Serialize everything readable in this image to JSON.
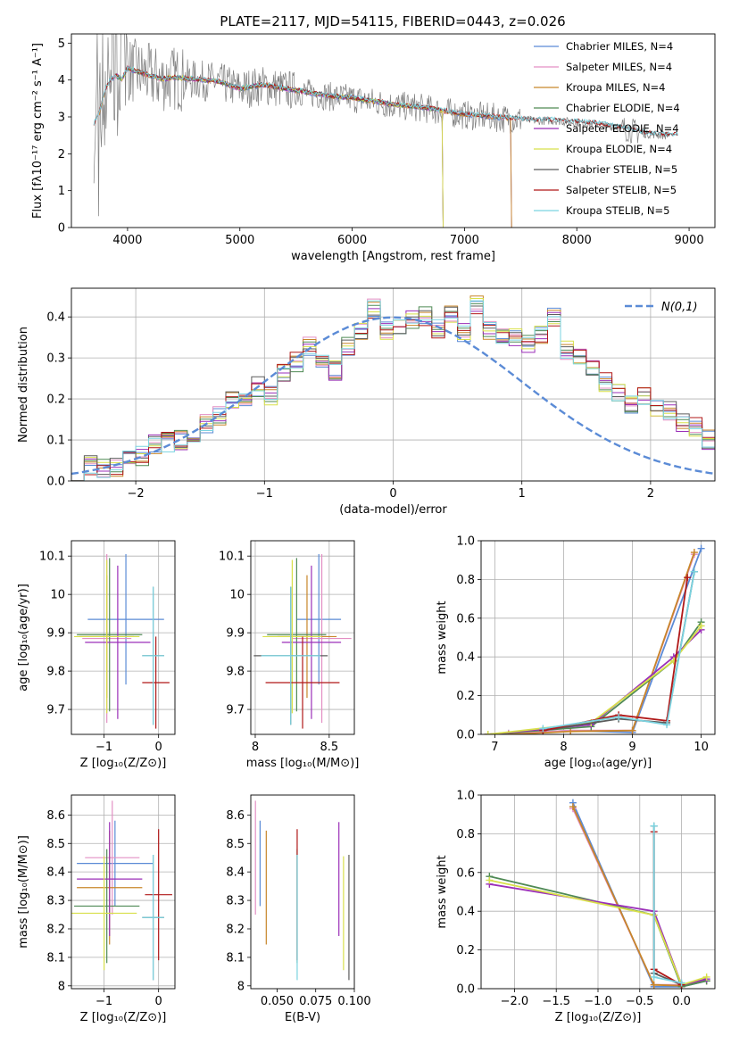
{
  "figure": {
    "title": "PLATE=2117, MJD=54115, FIBERID=0443, z=0.026"
  },
  "colors": {
    "chabrier_miles": "#5b8bd6",
    "salpeter_miles": "#e38fc4",
    "kroupa_miles": "#c8862a",
    "chabrier_elodie": "#4f8a55",
    "salpeter_elodie": "#9b2fb8",
    "kroupa_elodie": "#d8e04a",
    "chabrier_stelib": "#5c5c5c",
    "salpeter_stelib": "#b01818",
    "kroupa_stelib": "#7ad3e0",
    "data": "#808080",
    "gaussian": "#5b8bd6",
    "grid": "#b0b0b0"
  },
  "chart_data": [
    {
      "id": "spectrum",
      "type": "line",
      "title": "PLATE=2117, MJD=54115, FIBERID=0443, z=0.026",
      "xlabel": "wavelength [Angstrom, rest frame]",
      "ylabel": "Flux [fλ10⁻¹⁷ erg cm⁻² s⁻¹ A⁻¹]",
      "xlim": [
        3500,
        9230
      ],
      "ylim": [
        0,
        5.25
      ],
      "xticks": [
        4000,
        5000,
        6000,
        7000,
        8000,
        9000
      ],
      "yticks": [
        0,
        1,
        2,
        3,
        4,
        5
      ],
      "grid": false,
      "legend_position": "top-right",
      "legend": [
        "Chabrier MILES, N_SSP=4",
        "Salpeter MILES, N_SSP=4",
        "Kroupa MILES, N_SSP=4",
        "Chabrier ELODIE, N_SSP=4",
        "Salpeter ELODIE, N_SSP=4",
        "Kroupa ELODIE, N_SSP=4",
        "Chabrier STELIB, N_SSP=5",
        "Salpeter STELIB, N_SSP=5",
        "Kroupa STELIB, N_SSP=5"
      ],
      "continuum": {
        "x": [
          3700,
          3750,
          3800,
          3850,
          3900,
          3950,
          4000,
          4100,
          4200,
          4300,
          4400,
          4600,
          4800,
          5000,
          5200,
          5400,
          5600,
          5800,
          6000,
          6200,
          6400,
          6600,
          6800,
          7000,
          7200,
          7400,
          7600,
          7800,
          8000,
          8200,
          8400,
          8600,
          8800,
          9000
        ],
        "y": [
          2.8,
          3.1,
          3.7,
          4.0,
          4.1,
          4.0,
          4.3,
          4.2,
          4.1,
          4.0,
          4.05,
          4.0,
          3.95,
          3.75,
          3.85,
          3.75,
          3.65,
          3.55,
          3.5,
          3.4,
          3.3,
          3.25,
          3.15,
          3.05,
          3.0,
          2.95,
          2.9,
          2.9,
          2.85,
          2.8,
          2.7,
          2.55,
          2.5,
          2.5
        ]
      }
    },
    {
      "id": "residuals",
      "type": "bar",
      "xlabel": "(data-model)/error",
      "ylabel": "Normed distribution",
      "xlim": [
        -2.5,
        2.5
      ],
      "ylim": [
        0,
        0.47
      ],
      "xticks": [
        -2,
        -1,
        0,
        1,
        2
      ],
      "xtick_labels": [
        "−2",
        "−1",
        "0",
        "1",
        "2"
      ],
      "yticks": [
        0.0,
        0.1,
        0.2,
        0.3,
        0.4
      ],
      "grid": true,
      "legend_position": "top-right",
      "legend": [
        "N(0,1)"
      ],
      "bin_width": 0.1,
      "values": [
        0.025,
        0.04,
        0.03,
        0.035,
        0.05,
        0.06,
        0.09,
        0.095,
        0.1,
        0.11,
        0.14,
        0.16,
        0.2,
        0.19,
        0.23,
        0.21,
        0.26,
        0.29,
        0.33,
        0.3,
        0.27,
        0.33,
        0.36,
        0.42,
        0.37,
        0.38,
        0.39,
        0.4,
        0.37,
        0.41,
        0.36,
        0.43,
        0.37,
        0.36,
        0.35,
        0.33,
        0.36,
        0.4,
        0.32,
        0.3,
        0.28,
        0.24,
        0.22,
        0.19,
        0.21,
        0.18,
        0.17,
        0.14,
        0.13,
        0.1,
        0.1,
        0.08,
        0.07,
        0.07,
        0.05,
        0.05,
        0.04,
        0.03,
        0.025,
        0.02
      ]
    },
    {
      "id": "age_vs_z",
      "type": "scatter",
      "xlabel": "Z [log₁₀(Z/Z⊙)]",
      "ylabel": "age  [log₁₀(age/yr)]",
      "xlim": [
        -1.6,
        0.3
      ],
      "ylim": [
        9.635,
        10.14
      ],
      "xticks": [
        -1,
        0
      ],
      "xtick_labels": [
        "−1",
        "0"
      ],
      "yticks": [
        9.7,
        9.8,
        9.9,
        10.0,
        10.1
      ],
      "grid": true,
      "points": [
        {
          "model": "chabrier_miles",
          "x": -0.6,
          "xerr": 0.7,
          "y": 9.935,
          "yerr": 0.17
        },
        {
          "model": "salpeter_miles",
          "x": -0.95,
          "xerr": 0.45,
          "y": 9.885,
          "yerr": 0.22
        },
        {
          "model": "kroupa_miles",
          "x": -0.95,
          "xerr": 0.5,
          "y": 9.89,
          "yerr": 0.16
        },
        {
          "model": "chabrier_elodie",
          "x": -0.9,
          "xerr": 0.6,
          "y": 9.895,
          "yerr": 0.2
        },
        {
          "model": "salpeter_elodie",
          "x": -0.75,
          "xerr": 0.6,
          "y": 9.875,
          "yerr": 0.2
        },
        {
          "model": "kroupa_elodie",
          "x": -0.95,
          "xerr": 0.6,
          "y": 9.89,
          "yerr": 0.2
        },
        {
          "model": "chabrier_stelib",
          "x": -0.1,
          "xerr": 0.2,
          "y": 9.84,
          "yerr": 0.18
        },
        {
          "model": "salpeter_stelib",
          "x": -0.05,
          "xerr": 0.25,
          "y": 9.77,
          "yerr": 0.12
        },
        {
          "model": "kroupa_stelib",
          "x": -0.1,
          "xerr": 0.2,
          "y": 9.84,
          "yerr": 0.18
        }
      ]
    },
    {
      "id": "age_vs_mass",
      "type": "scatter",
      "xlabel": "mass [log₁₀(M/M⊙)]",
      "ylabel": "",
      "xlim": [
        7.97,
        8.67
      ],
      "ylim": [
        9.635,
        10.14
      ],
      "xticks": [
        8.0,
        8.5
      ],
      "yticks": [
        9.7,
        9.8,
        9.9,
        10.0,
        10.1
      ],
      "grid": true,
      "points": [
        {
          "model": "chabrier_miles",
          "x": 8.43,
          "xerr": 0.15,
          "y": 9.935,
          "yerr": 0.17
        },
        {
          "model": "salpeter_miles",
          "x": 8.45,
          "xerr": 0.2,
          "y": 9.885,
          "yerr": 0.22
        },
        {
          "model": "kroupa_miles",
          "x": 8.35,
          "xerr": 0.2,
          "y": 9.89,
          "yerr": 0.16
        },
        {
          "model": "chabrier_elodie",
          "x": 8.28,
          "xerr": 0.2,
          "y": 9.895,
          "yerr": 0.2
        },
        {
          "model": "salpeter_elodie",
          "x": 8.38,
          "xerr": 0.2,
          "y": 9.875,
          "yerr": 0.2
        },
        {
          "model": "kroupa_elodie",
          "x": 8.25,
          "xerr": 0.2,
          "y": 9.89,
          "yerr": 0.2
        },
        {
          "model": "chabrier_stelib",
          "x": 8.24,
          "xerr": 0.25,
          "y": 9.84,
          "yerr": 0.18
        },
        {
          "model": "salpeter_stelib",
          "x": 8.32,
          "xerr": 0.25,
          "y": 9.77,
          "yerr": 0.12
        },
        {
          "model": "kroupa_stelib",
          "x": 8.24,
          "xerr": 0.2,
          "y": 9.84,
          "yerr": 0.18
        }
      ]
    },
    {
      "id": "weight_vs_age",
      "type": "line",
      "xlabel": "age  [log₁₀(age/yr)]",
      "ylabel": "mass weight",
      "xlim": [
        6.8,
        10.2
      ],
      "ylim": [
        0,
        1.0
      ],
      "xticks": [
        7,
        8,
        9,
        10
      ],
      "yticks": [
        0.0,
        0.2,
        0.4,
        0.6,
        0.8,
        1.0
      ],
      "grid": true,
      "series": [
        {
          "model": "chabrier_miles",
          "x": [
            7.2,
            8.1,
            9.0,
            10.0
          ],
          "y": [
            0.005,
            0.02,
            0.01,
            0.96
          ]
        },
        {
          "model": "salpeter_miles",
          "x": [
            7.2,
            8.1,
            9.0,
            9.9
          ],
          "y": [
            0.005,
            0.02,
            0.02,
            0.93
          ]
        },
        {
          "model": "kroupa_miles",
          "x": [
            7.2,
            8.1,
            9.0,
            9.9
          ],
          "y": [
            0.0,
            0.015,
            0.02,
            0.94
          ]
        },
        {
          "model": "chabrier_elodie",
          "x": [
            6.9,
            8.4,
            9.6,
            10.0
          ],
          "y": [
            0.0,
            0.04,
            0.38,
            0.58
          ]
        },
        {
          "model": "salpeter_elodie",
          "x": [
            6.9,
            8.4,
            9.6,
            10.0
          ],
          "y": [
            0.0,
            0.05,
            0.4,
            0.54
          ]
        },
        {
          "model": "kroupa_elodie",
          "x": [
            6.9,
            8.4,
            9.6,
            10.0
          ],
          "y": [
            0.0,
            0.06,
            0.38,
            0.56
          ]
        },
        {
          "model": "chabrier_stelib",
          "x": [
            7.7,
            8.8,
            9.5,
            9.9
          ],
          "y": [
            0.02,
            0.08,
            0.06,
            0.84
          ]
        },
        {
          "model": "salpeter_stelib",
          "x": [
            7.7,
            8.8,
            9.5,
            9.8
          ],
          "y": [
            0.02,
            0.1,
            0.07,
            0.81
          ]
        },
        {
          "model": "kroupa_stelib",
          "x": [
            7.7,
            8.8,
            9.5,
            9.9
          ],
          "y": [
            0.03,
            0.09,
            0.05,
            0.84
          ]
        }
      ]
    },
    {
      "id": "mass_vs_z",
      "type": "scatter",
      "xlabel": "Z [log₁₀(Z/Z⊙)]",
      "ylabel": "mass [log₁₀(M/M⊙)]",
      "xlim": [
        -1.6,
        0.3
      ],
      "ylim": [
        7.99,
        8.67
      ],
      "xticks": [
        -1,
        0
      ],
      "xtick_labels": [
        "−1",
        "0"
      ],
      "yticks": [
        8.0,
        8.1,
        8.2,
        8.3,
        8.4,
        8.5,
        8.6
      ],
      "grid": true,
      "points": [
        {
          "model": "chabrier_miles",
          "x": -0.8,
          "xerr": 0.7,
          "y": 8.43,
          "yerr": 0.15
        },
        {
          "model": "salpeter_miles",
          "x": -0.85,
          "xerr": 0.5,
          "y": 8.45,
          "yerr": 0.2
        },
        {
          "model": "kroupa_miles",
          "x": -0.9,
          "xerr": 0.6,
          "y": 8.345,
          "yerr": 0.2
        },
        {
          "model": "chabrier_elodie",
          "x": -0.95,
          "xerr": 0.6,
          "y": 8.28,
          "yerr": 0.2
        },
        {
          "model": "salpeter_elodie",
          "x": -0.9,
          "xerr": 0.6,
          "y": 8.375,
          "yerr": 0.2
        },
        {
          "model": "kroupa_elodie",
          "x": -1.0,
          "xerr": 0.6,
          "y": 8.255,
          "yerr": 0.2
        },
        {
          "model": "chabrier_stelib",
          "x": -0.1,
          "xerr": 0.2,
          "y": 8.24,
          "yerr": 0.22
        },
        {
          "model": "salpeter_stelib",
          "x": 0.0,
          "xerr": 0.25,
          "y": 8.32,
          "yerr": 0.23
        },
        {
          "model": "kroupa_stelib",
          "x": -0.1,
          "xerr": 0.2,
          "y": 8.24,
          "yerr": 0.22
        }
      ]
    },
    {
      "id": "mass_vs_ebv",
      "type": "scatter",
      "xlabel": "E(B-V)",
      "ylabel": "",
      "xlim": [
        0.033,
        0.1
      ],
      "ylim": [
        7.99,
        8.67
      ],
      "xticks": [
        0.05,
        0.075,
        0.1
      ],
      "xtick_labels": [
        "0.050",
        "0.075",
        "0.100"
      ],
      "yticks": [
        8.0,
        8.1,
        8.2,
        8.3,
        8.4,
        8.5,
        8.6
      ],
      "grid": false,
      "points": [
        {
          "model": "chabrier_miles",
          "x": 0.039,
          "y": 8.43,
          "yerr": 0.15
        },
        {
          "model": "salpeter_miles",
          "x": 0.036,
          "y": 8.45,
          "yerr": 0.2
        },
        {
          "model": "kroupa_miles",
          "x": 0.043,
          "y": 8.345,
          "yerr": 0.2
        },
        {
          "model": "chabrier_elodie",
          "x": 0.063,
          "y": 8.28,
          "yerr": 0.2
        },
        {
          "model": "salpeter_elodie",
          "x": 0.09,
          "y": 8.375,
          "yerr": 0.2
        },
        {
          "model": "kroupa_elodie",
          "x": 0.093,
          "y": 8.255,
          "yerr": 0.2
        },
        {
          "model": "chabrier_stelib",
          "x": 0.0965,
          "y": 8.24,
          "yerr": 0.22
        },
        {
          "model": "salpeter_stelib",
          "x": 0.063,
          "y": 8.32,
          "yerr": 0.23
        },
        {
          "model": "kroupa_stelib",
          "x": 0.063,
          "y": 8.24,
          "yerr": 0.22
        }
      ]
    },
    {
      "id": "weight_vs_z",
      "type": "line",
      "xlabel": "Z [log₁₀(Z/Z⊙)]",
      "ylabel": "mass weight",
      "xlim": [
        -2.4,
        0.4
      ],
      "ylim": [
        0,
        1.0
      ],
      "xticks": [
        -2.0,
        -1.5,
        -1.0,
        -0.5,
        0.0
      ],
      "xtick_labels": [
        "−2.0",
        "−1.5",
        "−1.0",
        "−0.5",
        "0.0"
      ],
      "yticks": [
        0.0,
        0.2,
        0.4,
        0.6,
        0.8,
        1.0
      ],
      "grid": true,
      "series": [
        {
          "model": "chabrier_miles",
          "x": [
            -1.3,
            -0.33,
            0.0,
            0.3
          ],
          "y": [
            0.96,
            0.01,
            0.01,
            0.04
          ]
        },
        {
          "model": "salpeter_miles",
          "x": [
            -1.3,
            -0.33,
            0.0,
            0.3
          ],
          "y": [
            0.93,
            0.02,
            0.02,
            0.04
          ]
        },
        {
          "model": "kroupa_miles",
          "x": [
            -1.3,
            -0.33,
            0.0,
            0.3
          ],
          "y": [
            0.94,
            0.02,
            0.015,
            0.04
          ]
        },
        {
          "model": "chabrier_elodie",
          "x": [
            -2.3,
            -0.33,
            0.0,
            0.3
          ],
          "y": [
            0.58,
            0.38,
            0.01,
            0.04
          ]
        },
        {
          "model": "salpeter_elodie",
          "x": [
            -2.3,
            -0.33,
            0.0,
            0.3
          ],
          "y": [
            0.54,
            0.4,
            0.02,
            0.05
          ]
        },
        {
          "model": "kroupa_elodie",
          "x": [
            -2.3,
            -0.33,
            0.0,
            0.3
          ],
          "y": [
            0.56,
            0.38,
            0.02,
            0.06
          ]
        },
        {
          "model": "chabrier_stelib",
          "x": [
            -0.33,
            -0.33,
            0.0
          ],
          "y": [
            0.84,
            0.08,
            0.02
          ]
        },
        {
          "model": "salpeter_stelib",
          "x": [
            -0.33,
            -0.33,
            0.0
          ],
          "y": [
            0.81,
            0.1,
            0.02
          ]
        },
        {
          "model": "kroupa_stelib",
          "x": [
            -0.33,
            -0.33,
            0.0
          ],
          "y": [
            0.84,
            0.06,
            0.03
          ]
        }
      ]
    }
  ]
}
